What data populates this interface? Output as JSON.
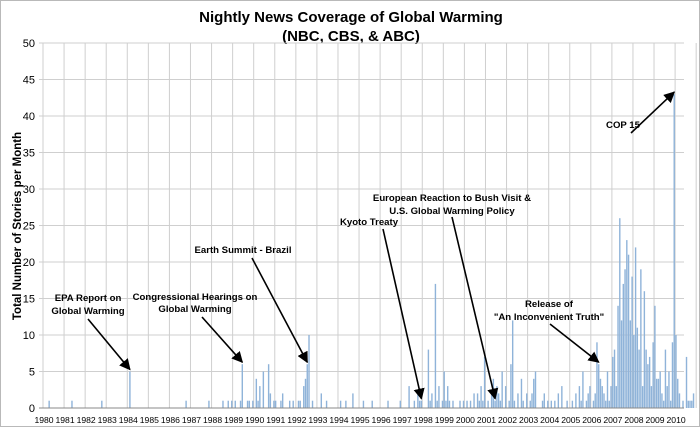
{
  "chart_data": {
    "type": "bar",
    "title": "Nightly News Coverage of Global Warming",
    "subtitle": "(NBC, CBS, & ABC)",
    "ylabel": "Total Number of Stories per Month",
    "xlabel": "",
    "ylim": [
      0,
      50
    ],
    "yticks": [
      "0",
      "5",
      "10",
      "15",
      "20",
      "25",
      "30",
      "35",
      "40",
      "45",
      "50"
    ],
    "categories": [
      "1980",
      "1981",
      "1982",
      "1983",
      "1984",
      "1985",
      "1986",
      "1987",
      "1988",
      "1989",
      "1990",
      "1991",
      "1992",
      "1993",
      "1994",
      "1995",
      "1996",
      "1997",
      "1998",
      "1999",
      "2000",
      "2001",
      "2002",
      "2003",
      "2004",
      "2005",
      "2006",
      "2007",
      "2008",
      "2009",
      "2010"
    ],
    "grid": true,
    "monthly_stories": [
      {
        "year": 1980,
        "values": [
          0,
          0,
          0,
          1,
          0,
          0,
          0,
          0,
          0,
          0,
          0,
          0
        ]
      },
      {
        "year": 1981,
        "values": [
          0,
          0,
          0,
          0,
          1,
          0,
          0,
          0,
          0,
          0,
          0,
          0
        ]
      },
      {
        "year": 1982,
        "values": [
          0,
          0,
          0,
          0,
          0,
          0,
          0,
          0,
          0,
          1,
          0,
          0
        ]
      },
      {
        "year": 1983,
        "values": [
          0,
          0,
          0,
          0,
          0,
          0,
          0,
          0,
          0,
          0,
          0,
          0
        ]
      },
      {
        "year": 1984,
        "values": [
          0,
          5,
          0,
          0,
          0,
          0,
          0,
          0,
          0,
          0,
          0,
          0
        ]
      },
      {
        "year": 1985,
        "values": [
          0,
          0,
          0,
          0,
          0,
          0,
          0,
          0,
          0,
          0,
          0,
          0
        ]
      },
      {
        "year": 1986,
        "values": [
          0,
          0,
          0,
          0,
          0,
          0,
          0,
          0,
          0,
          1,
          0,
          0
        ]
      },
      {
        "year": 1987,
        "values": [
          0,
          0,
          0,
          0,
          0,
          0,
          0,
          0,
          0,
          0,
          1,
          0
        ]
      },
      {
        "year": 1988,
        "values": [
          0,
          0,
          0,
          0,
          0,
          0,
          1,
          0,
          0,
          1,
          0,
          1
        ]
      },
      {
        "year": 1989,
        "values": [
          0,
          1,
          0,
          0,
          1,
          6,
          0,
          0,
          1,
          1,
          0,
          1
        ]
      },
      {
        "year": 1990,
        "values": [
          0,
          4,
          1,
          3,
          0,
          5,
          0,
          0,
          6,
          2,
          0,
          1
        ]
      },
      {
        "year": 1991,
        "values": [
          1,
          0,
          0,
          1,
          2,
          0,
          0,
          0,
          1,
          0,
          1,
          0
        ]
      },
      {
        "year": 1992,
        "values": [
          0,
          1,
          1,
          0,
          3,
          4,
          6,
          10,
          0,
          1,
          0,
          0
        ]
      },
      {
        "year": 1993,
        "values": [
          0,
          0,
          2,
          0,
          0,
          1,
          0,
          0,
          0,
          0,
          0,
          0
        ]
      },
      {
        "year": 1994,
        "values": [
          0,
          1,
          0,
          0,
          1,
          0,
          0,
          0,
          2,
          0,
          0,
          0
        ]
      },
      {
        "year": 1995,
        "values": [
          0,
          0,
          1,
          0,
          0,
          0,
          0,
          1,
          0,
          0,
          0,
          0
        ]
      },
      {
        "year": 1996,
        "values": [
          0,
          0,
          0,
          0,
          1,
          0,
          0,
          0,
          0,
          0,
          0,
          1
        ]
      },
      {
        "year": 1997,
        "values": [
          0,
          0,
          0,
          0,
          3,
          0,
          0,
          1,
          0,
          2,
          1,
          1
        ]
      },
      {
        "year": 1998,
        "values": [
          0,
          0,
          0,
          8,
          1,
          2,
          0,
          17,
          1,
          3,
          0,
          1
        ]
      },
      {
        "year": 1999,
        "values": [
          5,
          1,
          3,
          1,
          0,
          1,
          0,
          0,
          0,
          1,
          0,
          1
        ]
      },
      {
        "year": 2000,
        "values": [
          0,
          1,
          0,
          1,
          0,
          2,
          0,
          2,
          1,
          3,
          1,
          7
        ]
      },
      {
        "year": 2001,
        "values": [
          0,
          1,
          0,
          2,
          4,
          1,
          3,
          2,
          1,
          5,
          0,
          3
        ]
      },
      {
        "year": 2002,
        "values": [
          0,
          1,
          6,
          12,
          1,
          0,
          2,
          0,
          4,
          1,
          0,
          2
        ]
      },
      {
        "year": 2003,
        "values": [
          0,
          1,
          2,
          4,
          5,
          0,
          0,
          0,
          1,
          2,
          0,
          1
        ]
      },
      {
        "year": 2004,
        "values": [
          0,
          1,
          0,
          1,
          0,
          2,
          0,
          3,
          0,
          0,
          1,
          0
        ]
      },
      {
        "year": 2005,
        "values": [
          0,
          1,
          0,
          2,
          0,
          3,
          1,
          5,
          0,
          1,
          2,
          3
        ]
      },
      {
        "year": 2006,
        "values": [
          0,
          1,
          2,
          9,
          6,
          4,
          3,
          2,
          1,
          5,
          1,
          3
        ]
      },
      {
        "year": 2007,
        "values": [
          7,
          8,
          3,
          14,
          26,
          12,
          17,
          19,
          23,
          21,
          12,
          18
        ]
      },
      {
        "year": 2008,
        "values": [
          10,
          22,
          11,
          8,
          19,
          3,
          16,
          8,
          6,
          7,
          3,
          9
        ]
      },
      {
        "year": 2009,
        "values": [
          14,
          4,
          4,
          5,
          2,
          1,
          8,
          3,
          5,
          1,
          9,
          43
        ]
      },
      {
        "year": 2010,
        "values": [
          10,
          4,
          2,
          0,
          1,
          0,
          7,
          1,
          1,
          1,
          2,
          0
        ]
      }
    ],
    "annotations": [
      {
        "name": "epa-report",
        "lines": [
          "EPA Report on",
          "Global Warming"
        ],
        "year": 1984,
        "month": 2
      },
      {
        "name": "congressional-hearings",
        "lines": [
          "Congressional Hearings on",
          "Global Warming"
        ],
        "year": 1989,
        "month": 6
      },
      {
        "name": "earth-summit",
        "lines": [
          "Earth Summit - Brazil"
        ],
        "year": 1992,
        "month": 7
      },
      {
        "name": "kyoto-treaty",
        "lines": [
          "Kyoto Treaty"
        ],
        "year": 1997,
        "month": 12
      },
      {
        "name": "european-reaction",
        "lines": [
          "European Reaction to Bush Visit &",
          "U.S. Global Warming Policy"
        ],
        "year": 2001,
        "month": 6
      },
      {
        "name": "inconvenient-truth",
        "lines": [
          "Release of",
          "\"An Inconvenient Truth\""
        ],
        "year": 2006,
        "month": 5
      },
      {
        "name": "cop15",
        "lines": [
          "COP 15"
        ],
        "year": 2009,
        "month": 12
      }
    ]
  }
}
